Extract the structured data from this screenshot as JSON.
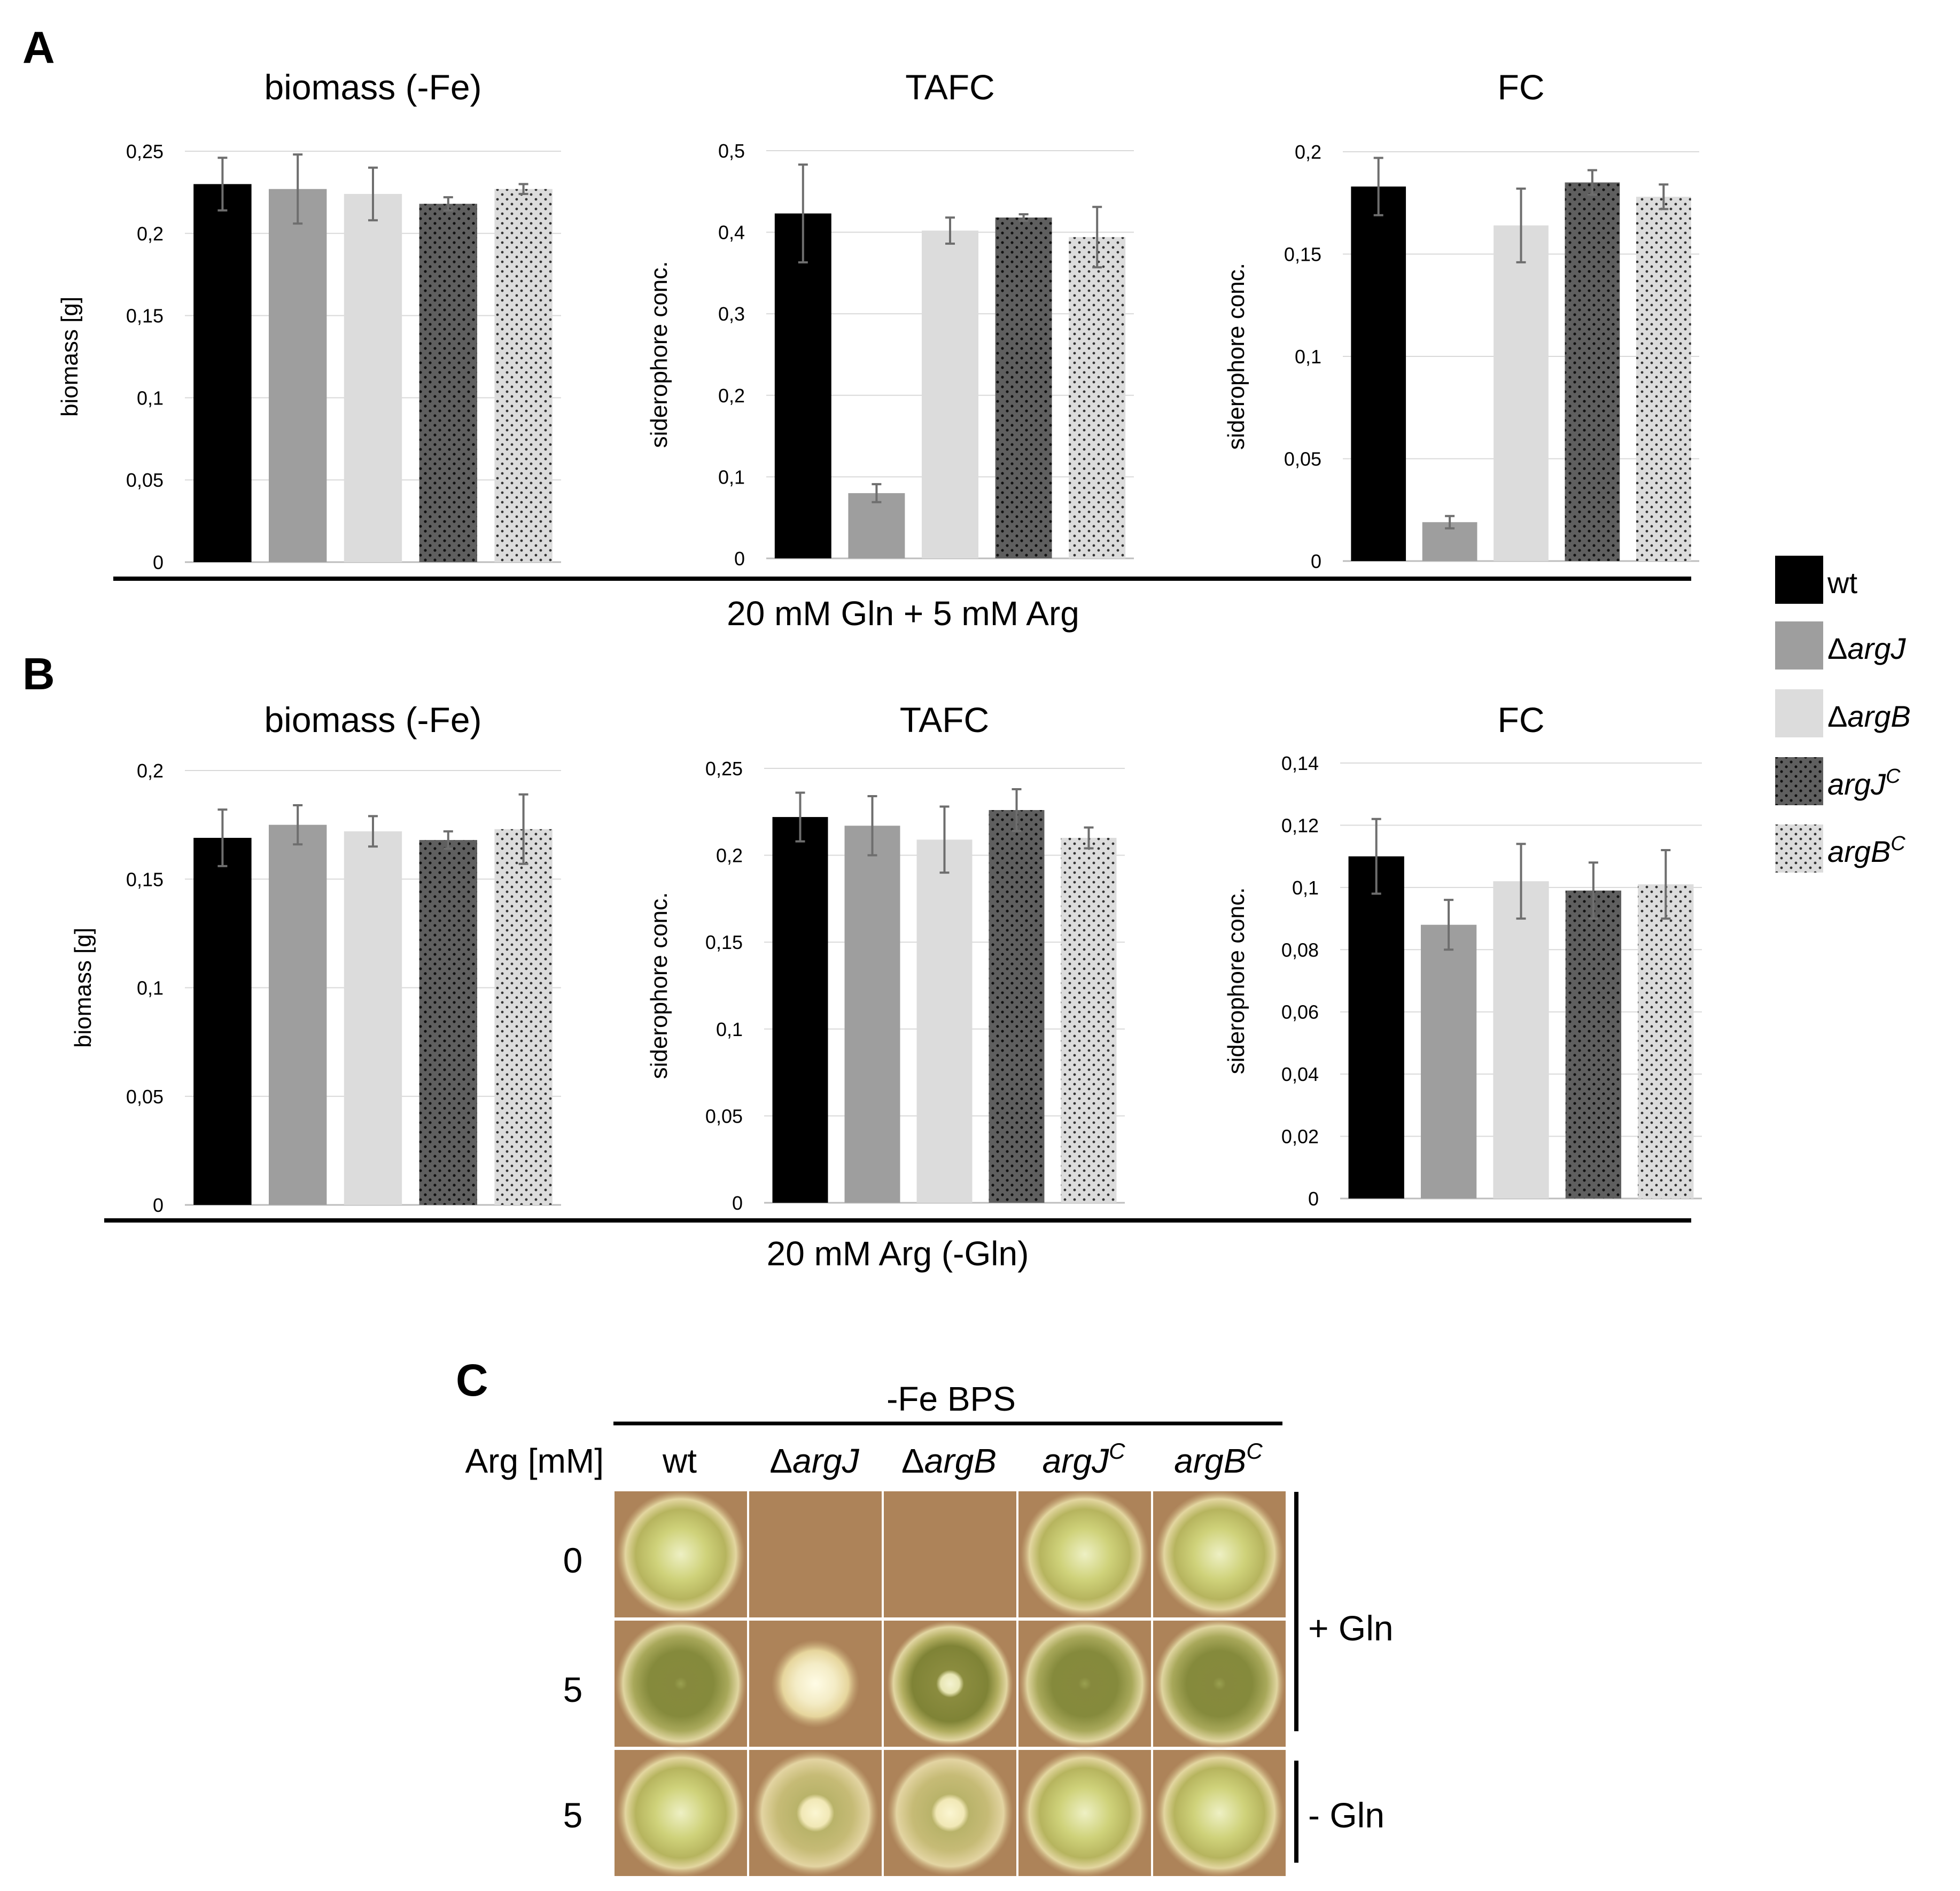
{
  "panels": {
    "A": {
      "letter": "A",
      "condition": "20 mM Gln + 5 mM Arg"
    },
    "B": {
      "letter": "B",
      "condition": "20 mM Arg (-Gln)"
    },
    "C": {
      "letter": "C"
    }
  },
  "legend": [
    {
      "key": "wt",
      "prefix": "",
      "italic": "",
      "sup": "",
      "text": "wt"
    },
    {
      "key": "dargJ",
      "prefix": "Δ",
      "italic": "argJ",
      "sup": "",
      "text": "ΔargJ"
    },
    {
      "key": "dargB",
      "prefix": "Δ",
      "italic": "argB",
      "sup": "",
      "text": "ΔargB"
    },
    {
      "key": "argJC",
      "prefix": "",
      "italic": "argJ",
      "sup": "C",
      "text": "argJC"
    },
    {
      "key": "argBC",
      "prefix": "",
      "italic": "argB",
      "sup": "C",
      "text": "argBC"
    }
  ],
  "chart_data": [
    {
      "id": "A-biomass",
      "panel": "A",
      "type": "bar",
      "title": "biomass (-Fe)",
      "ylabel": "biomass [g]",
      "categories": [
        "wt",
        "ΔargJ",
        "ΔargB",
        "argJC",
        "argBC"
      ],
      "values": [
        0.23,
        0.227,
        0.224,
        0.218,
        0.227
      ],
      "errors": [
        0.016,
        0.021,
        0.016,
        0.004,
        0.003
      ],
      "ylim": [
        0,
        0.25
      ],
      "ticks": [
        0,
        0.05,
        0.1,
        0.15,
        0.2,
        0.25
      ],
      "tick_labels": [
        "0",
        "0,05",
        "0,1",
        "0,15",
        "0,2",
        "0,25"
      ],
      "grid": true
    },
    {
      "id": "A-TAFC",
      "panel": "A",
      "type": "bar",
      "title": "TAFC",
      "ylabel": "siderophore conc.",
      "categories": [
        "wt",
        "ΔargJ",
        "ΔargB",
        "argJC",
        "argBC"
      ],
      "values": [
        0.423,
        0.08,
        0.402,
        0.418,
        0.394
      ],
      "errors": [
        0.06,
        0.011,
        0.016,
        0.004,
        0.037
      ],
      "ylim": [
        0,
        0.5
      ],
      "ticks": [
        0,
        0.1,
        0.2,
        0.3,
        0.4,
        0.5
      ],
      "tick_labels": [
        "0",
        "0,1",
        "0,2",
        "0,3",
        "0,4",
        "0,5"
      ],
      "grid": true
    },
    {
      "id": "A-FC",
      "panel": "A",
      "type": "bar",
      "title": "FC",
      "ylabel": "siderophore conc.",
      "categories": [
        "wt",
        "ΔargJ",
        "ΔargB",
        "argJC",
        "argBC"
      ],
      "values": [
        0.183,
        0.019,
        0.164,
        0.185,
        0.178
      ],
      "errors": [
        0.014,
        0.003,
        0.018,
        0.006,
        0.006
      ],
      "ylim": [
        0,
        0.2
      ],
      "ticks": [
        0,
        0.05,
        0.1,
        0.15,
        0.2
      ],
      "tick_labels": [
        "0",
        "0,05",
        "0,1",
        "0,15",
        "0,2"
      ],
      "grid": true
    },
    {
      "id": "B-biomass",
      "panel": "B",
      "type": "bar",
      "title": "biomass (-Fe)",
      "ylabel": "biomass [g]",
      "categories": [
        "wt",
        "ΔargJ",
        "ΔargB",
        "argJC",
        "argBC"
      ],
      "values": [
        0.169,
        0.175,
        0.172,
        0.168,
        0.173
      ],
      "errors": [
        0.013,
        0.009,
        0.007,
        0.004,
        0.016
      ],
      "ylim": [
        0,
        0.2
      ],
      "ticks": [
        0,
        0.05,
        0.1,
        0.15,
        0.2
      ],
      "tick_labels": [
        "0",
        "0,05",
        "0,1",
        "0,15",
        "0,2"
      ],
      "grid": true
    },
    {
      "id": "B-TAFC",
      "panel": "B",
      "type": "bar",
      "title": "TAFC",
      "ylabel": "siderophore conc.",
      "categories": [
        "wt",
        "ΔargJ",
        "ΔargB",
        "argJC",
        "argBC"
      ],
      "values": [
        0.222,
        0.217,
        0.209,
        0.226,
        0.21
      ],
      "errors": [
        0.014,
        0.017,
        0.019,
        0.012,
        0.006
      ],
      "ylim": [
        0,
        0.25
      ],
      "ticks": [
        0,
        0.05,
        0.1,
        0.15,
        0.2,
        0.25
      ],
      "tick_labels": [
        "0",
        "0,05",
        "0,1",
        "0,15",
        "0,2",
        "0,25"
      ],
      "grid": true
    },
    {
      "id": "B-FC",
      "panel": "B",
      "type": "bar",
      "title": "FC",
      "ylabel": "siderophore conc.",
      "categories": [
        "wt",
        "ΔargJ",
        "ΔargB",
        "argJC",
        "argBC"
      ],
      "values": [
        0.11,
        0.088,
        0.102,
        0.099,
        0.101
      ],
      "errors": [
        0.012,
        0.008,
        0.012,
        0.009,
        0.011
      ],
      "ylim": [
        0,
        0.14
      ],
      "ticks": [
        0,
        0.02,
        0.04,
        0.06,
        0.08,
        0.1,
        0.12,
        0.14
      ],
      "tick_labels": [
        "0",
        "0,02",
        "0,04",
        "0,06",
        "0,08",
        "0,1",
        "0,12",
        "0,14"
      ],
      "grid": true
    }
  ],
  "panelC": {
    "header": "-Fe BPS",
    "row_header": "Arg [mM]",
    "columns": [
      {
        "prefix": "",
        "italic": "",
        "sup": "",
        "text": "wt"
      },
      {
        "prefix": "Δ",
        "italic": "argJ",
        "sup": "",
        "text": "ΔargJ"
      },
      {
        "prefix": "Δ",
        "italic": "argB",
        "sup": "",
        "text": "ΔargB"
      },
      {
        "prefix": "",
        "italic": "argJ",
        "sup": "C",
        "text": "argJC"
      },
      {
        "prefix": "",
        "italic": "argB",
        "sup": "C",
        "text": "argBC"
      }
    ],
    "rows": [
      "0",
      "5",
      "5"
    ],
    "groups": [
      "+ Gln",
      "- Gln"
    ],
    "growth": [
      [
        "full",
        "none",
        "none",
        "full",
        "full"
      ],
      [
        "full-dark",
        "small-white",
        "full-ring",
        "full-dark",
        "full-dark"
      ],
      [
        "full",
        "medium-white",
        "medium-white",
        "full",
        "full"
      ]
    ]
  }
}
